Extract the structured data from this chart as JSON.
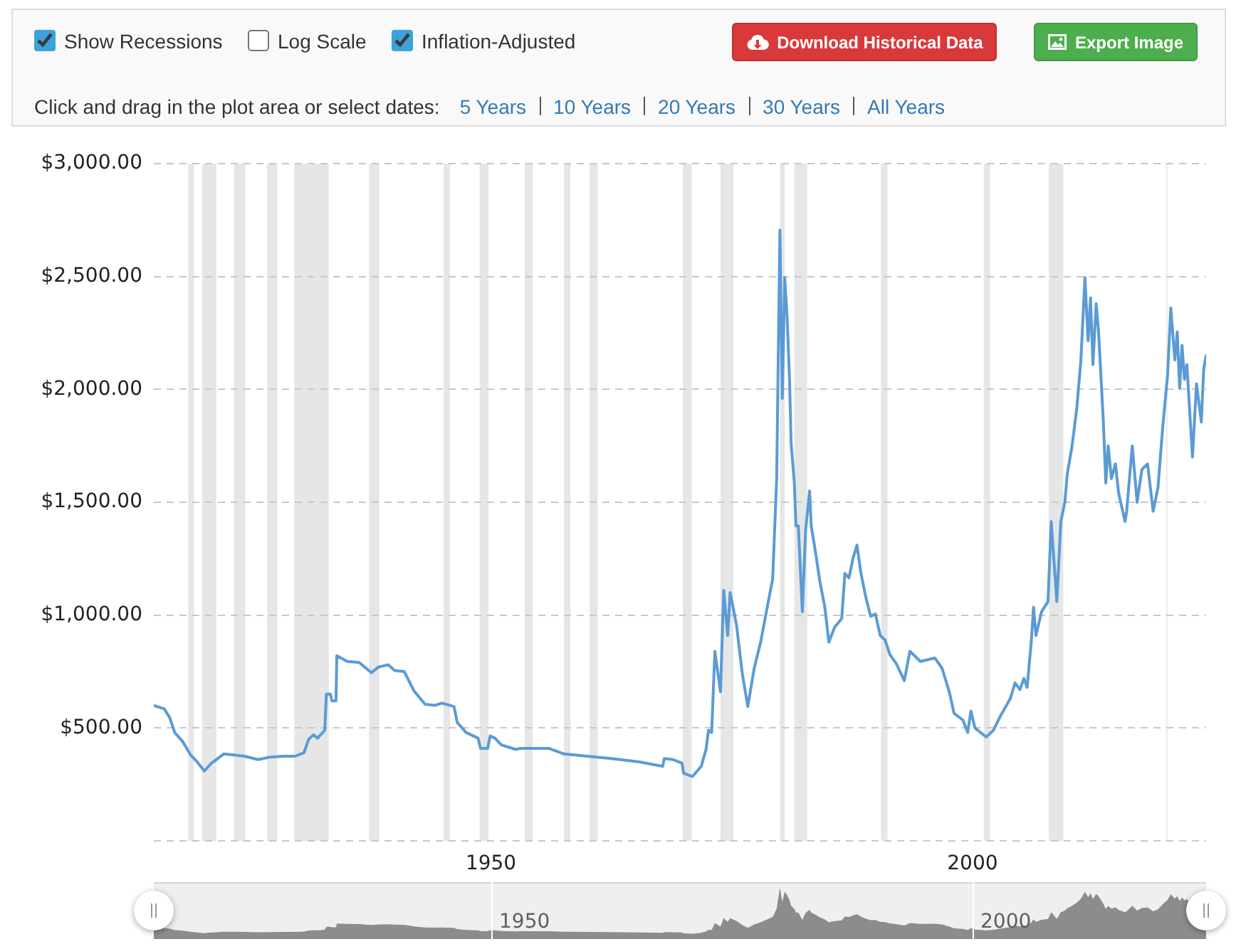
{
  "chart_data": {
    "type": "line",
    "x": [
      "1915-01",
      "1916-02",
      "1916-09",
      "1917-03",
      "1918-01",
      "1918-11",
      "1919-07",
      "1920-04",
      "1921-01",
      "1921-07",
      "1922-04",
      "1923-07",
      "1924-06",
      "1925-11",
      "1926-12",
      "1928-06",
      "1929-09",
      "1930-08",
      "1931-02",
      "1931-08",
      "1932-01",
      "1932-10",
      "1932-12",
      "1933-05",
      "1933-07",
      "1933-12",
      "1934-01",
      "1935-02",
      "1936-05",
      "1937-08",
      "1938-05",
      "1939-05",
      "1940-01",
      "1941-01",
      "1942-01",
      "1943-03",
      "1944-03",
      "1944-12",
      "1946-03",
      "1946-07",
      "1947-06",
      "1948-09",
      "1948-12",
      "1949-09",
      "1949-12",
      "1950-06",
      "1951-02",
      "1952-08",
      "1953-02",
      "1956-01",
      "1957-08",
      "1960-01",
      "1962-07",
      "1965-06",
      "1967-11",
      "1968-01",
      "1968-12",
      "1969-11",
      "1970-01",
      "1970-12",
      "1971-11",
      "1972-05",
      "1972-08",
      "1972-12",
      "1973-04",
      "1973-11",
      "1974-03",
      "1974-08",
      "1974-11",
      "1975-07",
      "1976-02",
      "1976-09",
      "1977-05",
      "1978-01",
      "1978-10",
      "1979-04",
      "1979-09",
      "1980-01",
      "1980-04",
      "1980-07",
      "1980-10",
      "1981-01",
      "1981-03",
      "1981-07",
      "1981-09",
      "1981-12",
      "1982-05",
      "1982-09",
      "1983-02",
      "1983-04",
      "1983-08",
      "1984-03",
      "1984-09",
      "1985-02",
      "1985-09",
      "1986-06",
      "1986-10",
      "1987-03",
      "1987-08",
      "1988-01",
      "1988-06",
      "1988-12",
      "1989-06",
      "1989-12",
      "1990-06",
      "1990-12",
      "1991-06",
      "1992-02",
      "1992-12",
      "1993-07",
      "1994-08",
      "1996-02",
      "1996-11",
      "1997-08",
      "1998-02",
      "1999-01",
      "1999-07",
      "1999-11",
      "2000-04",
      "2001-06",
      "2002-03",
      "2002-12",
      "2003-12",
      "2004-06",
      "2004-12",
      "2005-05",
      "2005-09",
      "2006-02",
      "2006-05",
      "2006-08",
      "2007-03",
      "2007-11",
      "2008-03",
      "2008-10",
      "2009-03",
      "2009-08",
      "2009-11",
      "2010-05",
      "2010-11",
      "2011-04",
      "2011-09",
      "2012-01",
      "2012-04",
      "2012-07",
      "2012-11",
      "2013-02",
      "2013-08",
      "2013-11",
      "2014-02",
      "2014-06",
      "2014-11",
      "2015-03",
      "2015-11",
      "2016-01",
      "2016-08",
      "2017-02",
      "2017-08",
      "2018-03",
      "2018-10",
      "2019-04",
      "2019-10",
      "2020-04",
      "2020-08",
      "2021-01",
      "2021-04",
      "2021-07",
      "2021-10",
      "2022-01",
      "2022-04",
      "2022-11",
      "2023-04",
      "2023-10",
      "2024-01",
      "2024-04"
    ],
    "series": [
      {
        "color": "#5b9bd5",
        "values": [
          600,
          585,
          545,
          480,
          440,
          380,
          350,
          310,
          345,
          360,
          385,
          380,
          375,
          360,
          370,
          375,
          375,
          390,
          450,
          470,
          455,
          490,
          650,
          650,
          620,
          620,
          820,
          795,
          790,
          745,
          770,
          780,
          755,
          750,
          665,
          605,
          600,
          610,
          595,
          525,
          480,
          455,
          410,
          410,
          465,
          455,
          425,
          405,
          410,
          410,
          385,
          375,
          365,
          350,
          330,
          365,
          360,
          345,
          300,
          285,
          330,
          405,
          490,
          480,
          840,
          660,
          1110,
          910,
          1100,
          955,
          745,
          595,
          765,
          880,
          1050,
          1160,
          1605,
          2705,
          1960,
          2495,
          2320,
          2045,
          1760,
          1585,
          1395,
          1395,
          1015,
          1375,
          1550,
          1395,
          1310,
          1145,
          1035,
          880,
          945,
          985,
          1185,
          1165,
          1250,
          1310,
          1185,
          1080,
          995,
          1005,
          910,
          890,
          825,
          785,
          710,
          840,
          795,
          810,
          765,
          660,
          565,
          535,
          480,
          575,
          500,
          460,
          490,
          555,
          630,
          700,
          670,
          720,
          680,
          875,
          1035,
          910,
          1015,
          1060,
          1415,
          1060,
          1415,
          1500,
          1625,
          1750,
          1920,
          2130,
          2495,
          2215,
          2405,
          2110,
          2380,
          2255,
          1855,
          1585,
          1750,
          1605,
          1670,
          1540,
          1415,
          1460,
          1750,
          1500,
          1645,
          1670,
          1460,
          1565,
          1835,
          2065,
          2360,
          2130,
          2255,
          2005,
          2195,
          2045,
          2110,
          1700,
          2025,
          1855,
          2090,
          2150
        ]
      }
    ],
    "xlim": [
      "1915-01",
      "2024-04"
    ],
    "xticks": [
      "1950",
      "2000"
    ],
    "ylim": [
      0,
      3000
    ],
    "yticks": [
      {
        "value": 0,
        "label": null
      },
      {
        "value": 500,
        "label": "$500.00"
      },
      {
        "value": 1000,
        "label": "$1,000.00"
      },
      {
        "value": 1500,
        "label": "$1,500.00"
      },
      {
        "value": 2000,
        "label": "$2,000.00"
      },
      {
        "value": 2500,
        "label": "$2,500.00"
      },
      {
        "value": 3000,
        "label": "$3,000.00"
      }
    ],
    "grid": "y",
    "bands": [
      {
        "axis": "x",
        "from": "1918-08",
        "to": "1919-03",
        "color": "#e6e6e6"
      },
      {
        "axis": "x",
        "from": "1920-01",
        "to": "1921-07",
        "color": "#e6e6e6"
      },
      {
        "axis": "x",
        "from": "1923-05",
        "to": "1924-07",
        "color": "#e6e6e6"
      },
      {
        "axis": "x",
        "from": "1926-10",
        "to": "1927-11",
        "color": "#e6e6e6"
      },
      {
        "axis": "x",
        "from": "1929-08",
        "to": "1933-03",
        "color": "#e6e6e6"
      },
      {
        "axis": "x",
        "from": "1937-05",
        "to": "1938-06",
        "color": "#e6e6e6"
      },
      {
        "axis": "x",
        "from": "1945-02",
        "to": "1945-10",
        "color": "#e6e6e6"
      },
      {
        "axis": "x",
        "from": "1948-11",
        "to": "1949-10",
        "color": "#e6e6e6"
      },
      {
        "axis": "x",
        "from": "1953-07",
        "to": "1954-05",
        "color": "#e6e6e6"
      },
      {
        "axis": "x",
        "from": "1957-08",
        "to": "1958-04",
        "color": "#e6e6e6"
      },
      {
        "axis": "x",
        "from": "1960-04",
        "to": "1961-02",
        "color": "#e6e6e6"
      },
      {
        "axis": "x",
        "from": "1969-12",
        "to": "1970-11",
        "color": "#e6e6e6"
      },
      {
        "axis": "x",
        "from": "1973-11",
        "to": "1975-03",
        "color": "#e6e6e6"
      },
      {
        "axis": "x",
        "from": "1980-01",
        "to": "1980-07",
        "color": "#e6e6e6"
      },
      {
        "axis": "x",
        "from": "1981-07",
        "to": "1982-11",
        "color": "#e6e6e6"
      },
      {
        "axis": "x",
        "from": "1990-07",
        "to": "1991-03",
        "color": "#e6e6e6"
      },
      {
        "axis": "x",
        "from": "2001-03",
        "to": "2001-11",
        "color": "#e6e6e6"
      },
      {
        "axis": "x",
        "from": "2007-12",
        "to": "2009-06",
        "color": "#e6e6e6"
      },
      {
        "axis": "x",
        "from": "2020-02",
        "to": "2020-04",
        "color": "#ececec"
      }
    ],
    "annotations": [
      "Show Recessions",
      "Log Scale",
      "Inflation-Adjusted",
      "Download Historical Data",
      "Export Image",
      "Click and drag in the plot area or select dates:",
      "5 Years",
      "10 Years",
      "20 Years",
      "30 Years",
      "All Years",
      "1950",
      "2000"
    ]
  }
}
